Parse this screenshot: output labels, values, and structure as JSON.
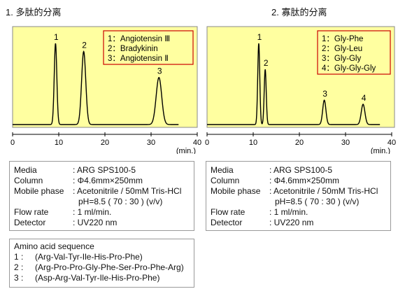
{
  "titles": {
    "left": "1. 多肽的分离",
    "right": "2. 寡肽的分离"
  },
  "chart_data": [
    {
      "type": "line",
      "xlabel": "(min.)",
      "xlim": [
        0,
        40
      ],
      "xticks": [
        0,
        10,
        20,
        30,
        40
      ],
      "background": "#FFFFA0",
      "legend_placement": "top-right",
      "legend": [
        "1：Angiotensin Ⅲ",
        "2：Bradykinin",
        "3：Angiotensin Ⅱ"
      ],
      "peaks": [
        {
          "label": "1",
          "t": 9.3,
          "height": 1.0,
          "width": 0.28
        },
        {
          "label": "2",
          "t": 15.4,
          "height": 0.9,
          "width": 0.45
        },
        {
          "label": "3",
          "t": 31.7,
          "height": 0.58,
          "width": 0.6
        }
      ],
      "t_end": 36
    },
    {
      "type": "line",
      "xlabel": "(min.)",
      "xlim": [
        0,
        40
      ],
      "xticks": [
        0,
        10,
        20,
        30,
        40
      ],
      "background": "#FFFFA0",
      "legend_placement": "top-right",
      "legend": [
        "1：Gly-Phe",
        "2：Gly-Leu",
        "3：Gly-Gly",
        "4：Gly-Gly-Gly"
      ],
      "peaks": [
        {
          "label": "1",
          "t": 11.2,
          "height": 1.0,
          "width": 0.22
        },
        {
          "label": "2",
          "t": 12.6,
          "height": 0.68,
          "width": 0.22
        },
        {
          "label": "3",
          "t": 25.4,
          "height": 0.3,
          "width": 0.35
        },
        {
          "label": "4",
          "t": 33.8,
          "height": 0.25,
          "width": 0.4
        }
      ],
      "t_end": 37.5
    }
  ],
  "conditions_left": {
    "media_label": "Media",
    "media": ": ARG SPS100-5",
    "column_label": "Column",
    "column": ": Φ4.6mm×250mm",
    "mobile_label": "Mobile phase",
    "mobile": ": Acetonitrile / 50mM Tris-HCl",
    "mobile2": "pH=8.5 ( 70 : 30 ) (v/v)",
    "flow_label": "Flow rate",
    "flow": ": 1 ml/min.",
    "detector_label": "Detector",
    "detector": ": UV220 nm"
  },
  "conditions_right": {
    "media_label": "Media",
    "media": ": ARG SPS100-5",
    "column_label": "Column",
    "column": ": Φ4.6mm×250mm",
    "mobile_label": "Mobile phase",
    "mobile": ": Acetonitrile / 50mM Tris-HCl",
    "mobile2": "pH=8.5 ( 70 : 30 ) (v/v)",
    "flow_label": "Flow rate",
    "flow": ": 1 ml/min.",
    "detector_label": "Detector",
    "detector": ": UV220 nm"
  },
  "sequence": {
    "title": "Amino acid sequence",
    "items": [
      {
        "n": "1 :",
        "text": "(Arg-Val-Tyr-Ile-His-Pro-Phe)"
      },
      {
        "n": "2 :",
        "text": "(Arg-Pro-Pro-Gly-Phe-Ser-Pro-Phe-Arg)"
      },
      {
        "n": "3 :",
        "text": "(Asp-Arg-Val-Tyr-Ile-His-Pro-Phe)"
      }
    ]
  },
  "colors": {
    "plot_bg": "#FFFFA0",
    "legend_border": "#CC0000",
    "trace": "#000000"
  }
}
